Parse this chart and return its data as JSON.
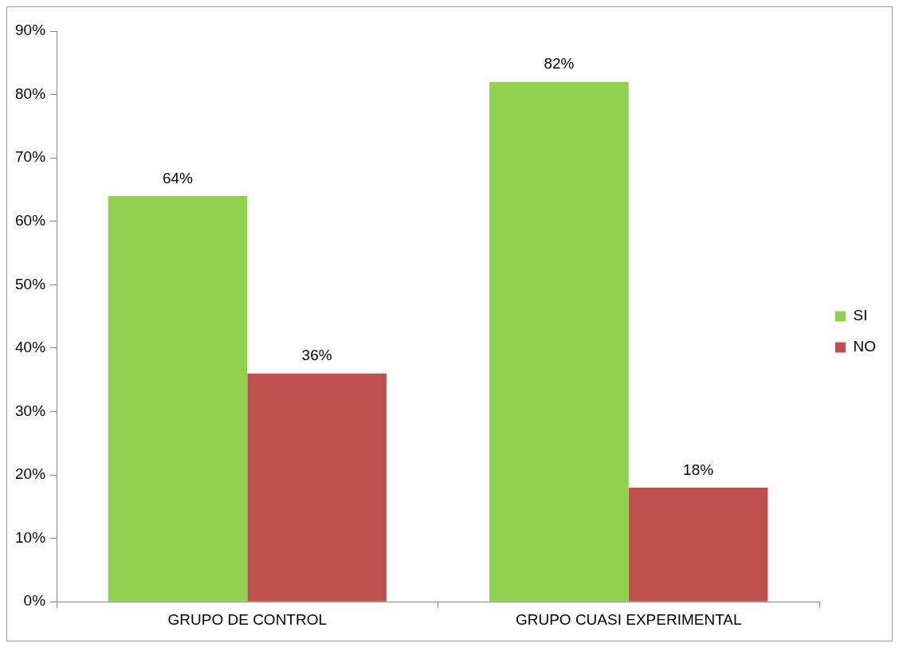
{
  "chart_data": {
    "type": "bar",
    "categories": [
      "GRUPO DE CONTROL",
      "GRUPO CUASI EXPERIMENTAL"
    ],
    "series": [
      {
        "name": "SI",
        "color": "#92d050",
        "values": [
          64,
          82
        ],
        "value_labels": [
          "64%",
          "82%"
        ]
      },
      {
        "name": "NO",
        "color": "#c0504d",
        "values": [
          36,
          18
        ],
        "value_labels": [
          "36%",
          "18%"
        ]
      }
    ],
    "ylim": [
      0,
      90
    ],
    "yticks": [
      {
        "value": 0,
        "label": "0%"
      },
      {
        "value": 10,
        "label": "10%"
      },
      {
        "value": 20,
        "label": "20%"
      },
      {
        "value": 30,
        "label": "30%"
      },
      {
        "value": 40,
        "label": "40%"
      },
      {
        "value": 50,
        "label": "50%"
      },
      {
        "value": 60,
        "label": "60%"
      },
      {
        "value": 70,
        "label": "70%"
      },
      {
        "value": 80,
        "label": "80%"
      },
      {
        "value": 90,
        "label": "90%"
      }
    ],
    "grid": false,
    "legend": "right"
  }
}
